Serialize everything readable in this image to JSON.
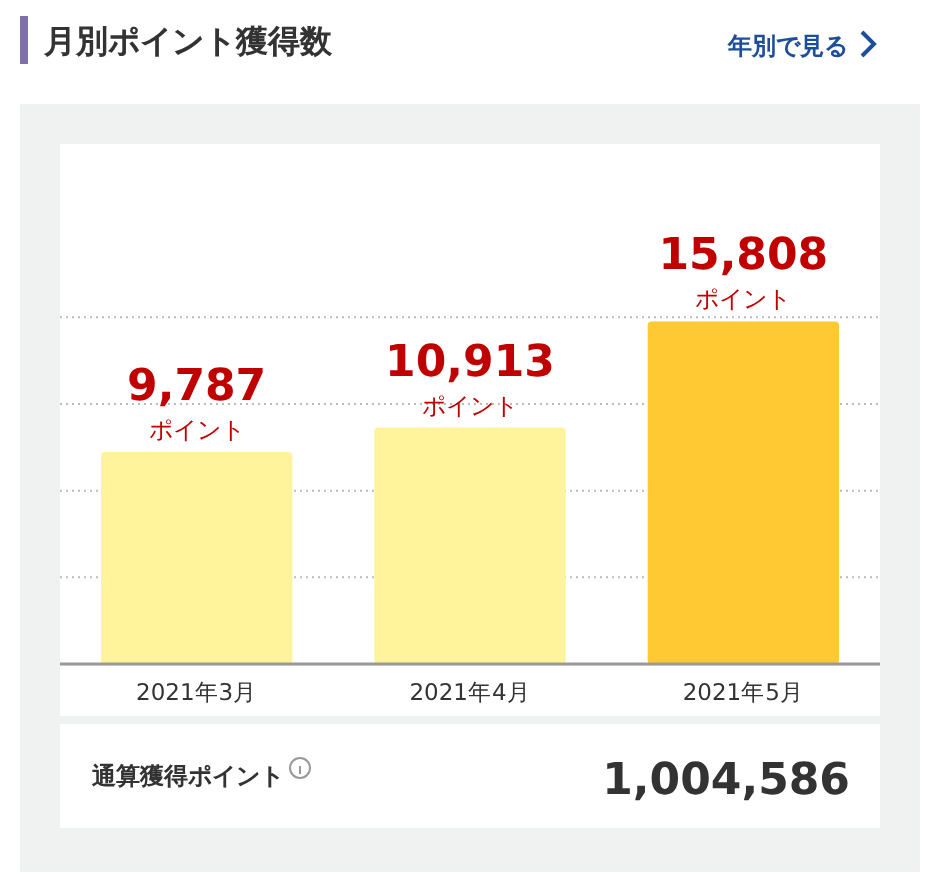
{
  "chart_data": {
    "type": "bar",
    "title": "月別ポイント獲得数",
    "categories": [
      "2021年3月",
      "2021年4月",
      "2021年5月"
    ],
    "values": [
      9787,
      10913,
      15808
    ],
    "colors": [
      "#fff39b",
      "#fff39b",
      "#ffc933"
    ],
    "value_labels": [
      "9,787",
      "10,913",
      "15,808"
    ],
    "ylim": [
      0,
      24000
    ],
    "yticks": [
      {
        "value": 4000,
        "label": null
      },
      {
        "value": 8000,
        "label": null
      },
      {
        "value": 12000,
        "label": null
      },
      {
        "value": 16000,
        "label": null
      }
    ],
    "tick_labels": "x",
    "grid": "y",
    "annotations": [
      {
        "text": "ポイント",
        "x": "2021年3月",
        "y": 9787
      },
      {
        "text": "ポイント",
        "x": "2021年4月",
        "y": 10913
      },
      {
        "text": "ポイント",
        "x": "2021年5月",
        "y": 15808
      },
      "年別で見る",
      "通算獲得ポイント",
      "1,004,586"
    ]
  }
}
